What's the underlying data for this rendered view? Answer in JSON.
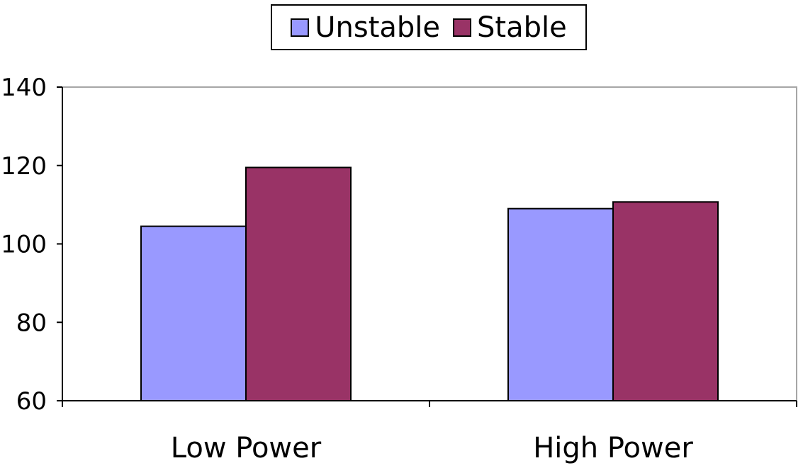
{
  "chart_data": {
    "type": "bar",
    "categories": [
      "Low Power",
      "High Power"
    ],
    "series": [
      {
        "name": "Unstable",
        "values": [
          104.5,
          109
        ],
        "color": "#9999ff"
      },
      {
        "name": "Stable",
        "values": [
          119.5,
          110.7
        ],
        "color": "#993366"
      }
    ],
    "ylim": [
      60,
      140
    ],
    "yticks": [
      60,
      80,
      100,
      120,
      140
    ],
    "grid": false,
    "legend_placement": "top-center"
  }
}
